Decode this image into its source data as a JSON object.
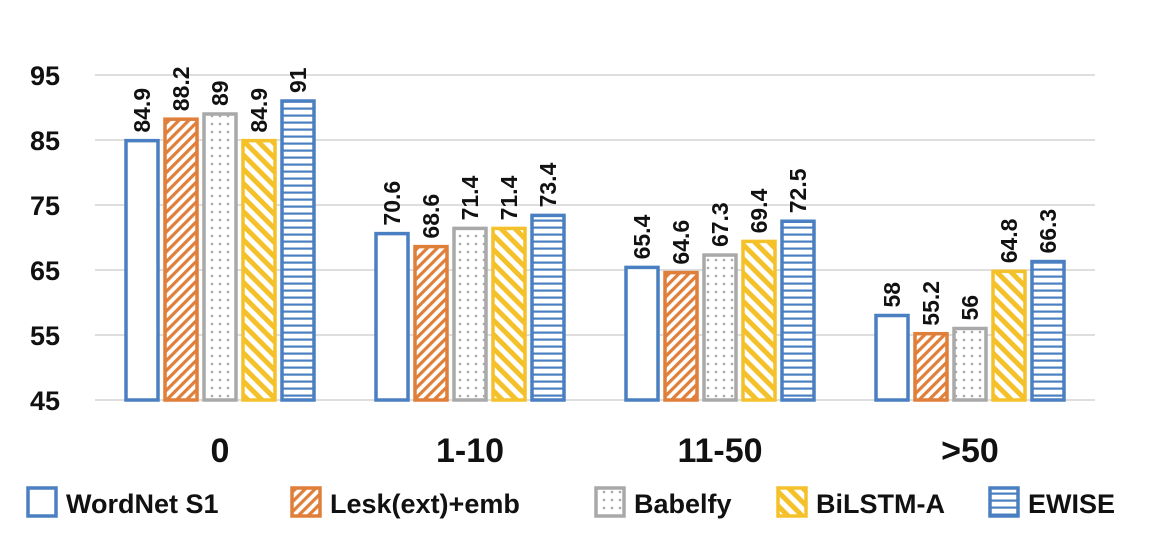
{
  "chart_data": {
    "type": "bar",
    "title": "",
    "xlabel": "",
    "ylabel": "",
    "ylim": [
      45,
      95
    ],
    "yticks": [
      45,
      55,
      65,
      75,
      85,
      95
    ],
    "grid": true,
    "legend_position": "bottom",
    "categories": [
      "0",
      "1-10",
      "11-50",
      ">50"
    ],
    "series": [
      {
        "name": "WordNet S1",
        "values": [
          84.9,
          70.6,
          65.4,
          58
        ],
        "labels": [
          "84.9",
          "70.6",
          "65.4",
          "58"
        ],
        "color": "#4a7fc1",
        "pattern": "none"
      },
      {
        "name": "Lesk(ext)+emb",
        "values": [
          88.2,
          68.6,
          64.6,
          55.2
        ],
        "labels": [
          "88.2",
          "68.6",
          "64.6",
          "55.2"
        ],
        "color": "#e07f3a",
        "pattern": "diagonal"
      },
      {
        "name": "Babelfy",
        "values": [
          89,
          71.4,
          67.3,
          56
        ],
        "labels": [
          "89",
          "71.4",
          "67.3",
          "56"
        ],
        "color": "#a9a9a9",
        "pattern": "dots"
      },
      {
        "name": "BiLSTM-A",
        "values": [
          84.9,
          71.4,
          69.4,
          64.8
        ],
        "labels": [
          "84.9",
          "71.4",
          "69.4",
          "64.8"
        ],
        "color": "#f5c12a",
        "pattern": "wide-diagonal"
      },
      {
        "name": "EWISE",
        "values": [
          91,
          73.4,
          72.5,
          66.3
        ],
        "labels": [
          "91",
          "73.4",
          "72.5",
          "66.3"
        ],
        "color": "#4a7fc1",
        "pattern": "horizontal"
      }
    ]
  }
}
